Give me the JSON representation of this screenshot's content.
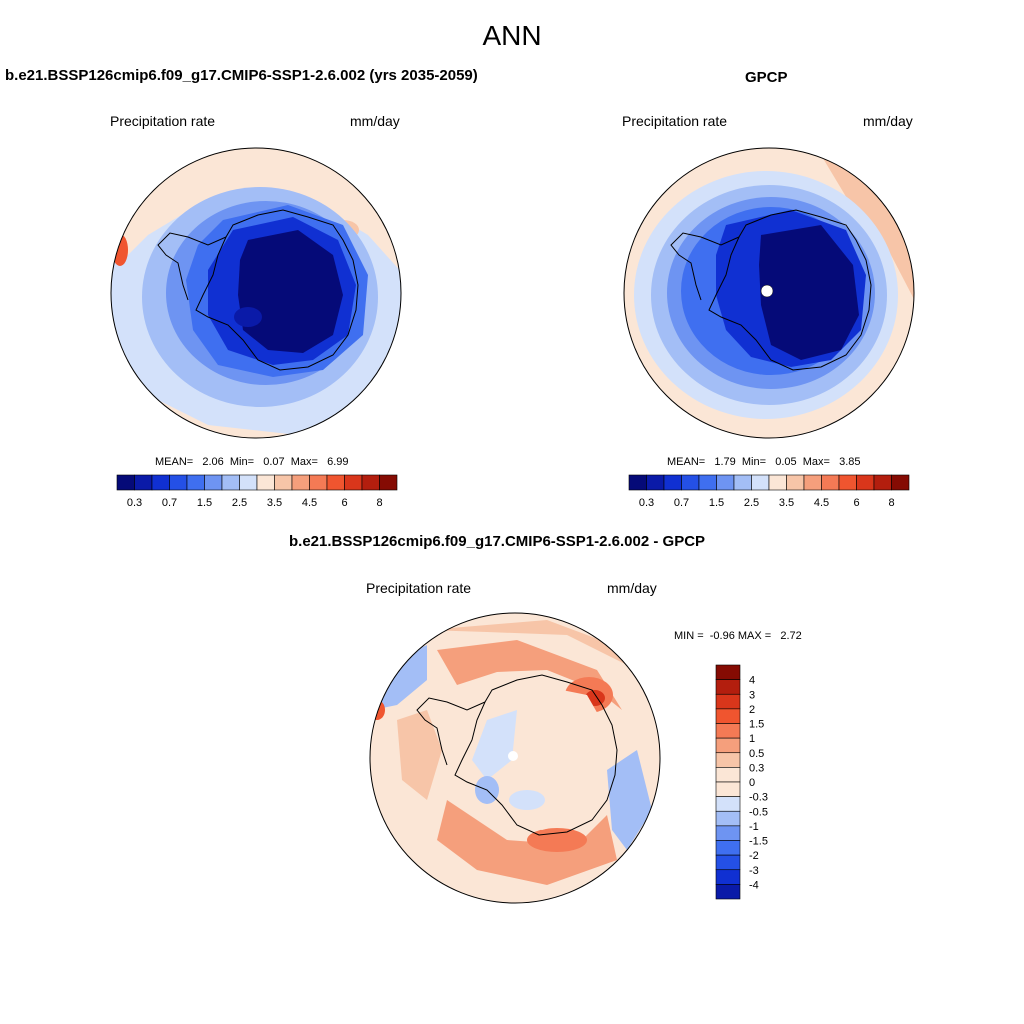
{
  "figure": {
    "title": "ANN"
  },
  "panels": [
    {
      "title": "b.e21.BSSP126cmip6.f09_g17.CMIP6-SSP1-2.6.002 (yrs 2035-2059)",
      "left_label": "Precipitation rate",
      "right_label": "mm/day",
      "stats_text": "MEAN=   2.06  Min=   0.07  Max=   6.99"
    },
    {
      "title": "GPCP",
      "left_label": "Precipitation rate",
      "right_label": "mm/day",
      "stats_text": "MEAN=   1.79  Min=   0.05  Max=   3.85"
    },
    {
      "title": "b.e21.BSSP126cmip6.f09_g17.CMIP6-SSP1-2.6.002 - GPCP",
      "left_label": "Precipitation rate",
      "right_label": "mm/day",
      "stats_text": "MIN =  -0.96 MAX =   2.72"
    }
  ],
  "chart_data": [
    {
      "type": "heatmap",
      "projection": "south-polar-stereographic",
      "title": "b.e21.BSSP126cmip6.f09_g17.CMIP6-SSP1-2.6.002 (yrs 2035-2059)",
      "variable": "Precipitation rate",
      "units": "mm/day",
      "mean": 2.06,
      "min": 0.07,
      "max": 6.99,
      "colorbar": {
        "orientation": "horizontal",
        "levels": [
          0.2,
          0.3,
          0.5,
          0.7,
          1,
          1.5,
          2,
          2.5,
          3,
          3.5,
          4,
          4.5,
          5,
          6,
          7,
          8
        ],
        "tick_labels": [
          "0.3",
          "0.7",
          "1.5",
          "2.5",
          "3.5",
          "4.5",
          "6",
          "8"
        ],
        "colors": [
          "#050a78",
          "#0a1aa8",
          "#1030d2",
          "#2450e6",
          "#3f6ff0",
          "#6e94f2",
          "#a3bef6",
          "#d3e1fa",
          "#fbe6d6",
          "#f7c5a8",
          "#f59f7c",
          "#f47a55",
          "#f0552f",
          "#d9361b",
          "#b31e0e",
          "#850b03"
        ]
      }
    },
    {
      "type": "heatmap",
      "projection": "south-polar-stereographic",
      "title": "GPCP",
      "variable": "Precipitation rate",
      "units": "mm/day",
      "mean": 1.79,
      "min": 0.05,
      "max": 3.85,
      "colorbar": {
        "orientation": "horizontal",
        "levels": [
          0.2,
          0.3,
          0.5,
          0.7,
          1,
          1.5,
          2,
          2.5,
          3,
          3.5,
          4,
          4.5,
          5,
          6,
          7,
          8
        ],
        "tick_labels": [
          "0.3",
          "0.7",
          "1.5",
          "2.5",
          "3.5",
          "4.5",
          "6",
          "8"
        ],
        "colors": [
          "#050a78",
          "#0a1aa8",
          "#1030d2",
          "#2450e6",
          "#3f6ff0",
          "#6e94f2",
          "#a3bef6",
          "#d3e1fa",
          "#fbe6d6",
          "#f7c5a8",
          "#f59f7c",
          "#f47a55",
          "#f0552f",
          "#d9361b",
          "#b31e0e",
          "#850b03"
        ]
      }
    },
    {
      "type": "heatmap",
      "projection": "south-polar-stereographic",
      "title": "b.e21.BSSP126cmip6.f09_g17.CMIP6-SSP1-2.6.002 - GPCP",
      "variable": "Precipitation rate",
      "units": "mm/day",
      "min": -0.96,
      "max": 2.72,
      "colorbar": {
        "orientation": "vertical",
        "tick_labels": [
          "4",
          "3",
          "2",
          "1.5",
          "1",
          "0.5",
          "0.3",
          "0",
          "-0.3",
          "-0.5",
          "-1",
          "-1.5",
          "-2",
          "-3",
          "-4"
        ],
        "colors": [
          "#850b03",
          "#b31e0e",
          "#d9361b",
          "#f0552f",
          "#f47a55",
          "#f59f7c",
          "#f7c5a8",
          "#fbe6d6",
          "#fbe6d6",
          "#d3e1fa",
          "#a3bef6",
          "#6e94f2",
          "#3f6ff0",
          "#2450e6",
          "#1030d2",
          "#0a1aa8"
        ]
      }
    }
  ]
}
